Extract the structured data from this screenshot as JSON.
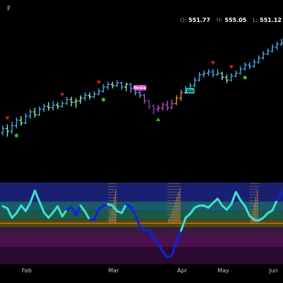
{
  "header": {
    "ticker_fragment": "F",
    "ohlc": [
      {
        "key": "O:",
        "value": "551.77"
      },
      {
        "key": "H:",
        "value": "555.05"
      },
      {
        "key": "L:",
        "value": "551.12"
      }
    ]
  },
  "colors": {
    "up_light_blue": "#4aa8e8",
    "up_mint": "#8fe8b8",
    "up_orange": "#e8913a",
    "down_magenta": "#c04ad0",
    "down_purple": "#7e3aa0",
    "marker_red": "#e02020",
    "marker_green": "#18c840",
    "wave_cyan": "#40e0d0",
    "wave_blue": "#1020e0",
    "squeeze_orange": "#e08840"
  },
  "chart_data": [
    {
      "type": "candlestick-bars",
      "x": [
        "Feb",
        "Mar",
        "Apr",
        "May",
        "Jun"
      ],
      "title": "",
      "ylabel": "",
      "series_price": [
        {
          "idx": 0,
          "o": 487,
          "c": 490,
          "h": 492,
          "l": 485,
          "col": "up_light_blue"
        },
        {
          "idx": 1,
          "o": 490,
          "c": 488,
          "h": 493,
          "l": 484,
          "col": "up_mint"
        },
        {
          "idx": 2,
          "o": 488,
          "c": 492,
          "h": 495,
          "l": 486,
          "col": "up_light_blue"
        },
        {
          "idx": 3,
          "o": 492,
          "c": 496,
          "h": 498,
          "l": 490,
          "col": "up_light_blue"
        },
        {
          "idx": 4,
          "o": 496,
          "c": 494,
          "h": 499,
          "l": 492,
          "col": "up_mint"
        },
        {
          "idx": 5,
          "o": 494,
          "c": 499,
          "h": 501,
          "l": 493,
          "col": "up_light_blue"
        },
        {
          "idx": 6,
          "o": 499,
          "c": 502,
          "h": 504,
          "l": 497,
          "col": "up_light_blue"
        },
        {
          "idx": 7,
          "o": 502,
          "c": 500,
          "h": 505,
          "l": 498,
          "col": "up_mint"
        },
        {
          "idx": 8,
          "o": 500,
          "c": 504,
          "h": 506,
          "l": 499,
          "col": "up_light_blue"
        },
        {
          "idx": 9,
          "o": 504,
          "c": 506,
          "h": 508,
          "l": 502,
          "col": "up_light_blue"
        },
        {
          "idx": 10,
          "o": 506,
          "c": 505,
          "h": 509,
          "l": 503,
          "col": "up_mint"
        },
        {
          "idx": 11,
          "o": 505,
          "c": 507,
          "h": 510,
          "l": 503,
          "col": "up_light_blue"
        },
        {
          "idx": 12,
          "o": 507,
          "c": 506,
          "h": 509,
          "l": 504,
          "col": "up_mint"
        },
        {
          "idx": 13,
          "o": 506,
          "c": 508,
          "h": 510,
          "l": 505,
          "col": "up_light_blue"
        },
        {
          "idx": 14,
          "o": 508,
          "c": 511,
          "h": 513,
          "l": 507,
          "col": "up_light_blue"
        },
        {
          "idx": 15,
          "o": 511,
          "c": 509,
          "h": 513,
          "l": 506,
          "col": "up_mint"
        },
        {
          "idx": 16,
          "o": 509,
          "c": 510,
          "h": 512,
          "l": 505,
          "col": "up_mint"
        },
        {
          "idx": 17,
          "o": 510,
          "c": 512,
          "h": 514,
          "l": 508,
          "col": "up_mint"
        },
        {
          "idx": 18,
          "o": 512,
          "c": 514,
          "h": 516,
          "l": 510,
          "col": "up_light_blue"
        },
        {
          "idx": 19,
          "o": 514,
          "c": 513,
          "h": 516,
          "l": 511,
          "col": "up_mint"
        },
        {
          "idx": 20,
          "o": 513,
          "c": 515,
          "h": 517,
          "l": 512,
          "col": "up_light_blue"
        },
        {
          "idx": 21,
          "o": 515,
          "c": 517,
          "h": 519,
          "l": 514,
          "col": "up_light_blue"
        },
        {
          "idx": 22,
          "o": 517,
          "c": 520,
          "h": 522,
          "l": 516,
          "col": "up_light_blue"
        },
        {
          "idx": 23,
          "o": 520,
          "c": 522,
          "h": 524,
          "l": 518,
          "col": "up_light_blue"
        },
        {
          "idx": 24,
          "o": 522,
          "c": 521,
          "h": 524,
          "l": 519,
          "col": "up_mint"
        },
        {
          "idx": 25,
          "o": 521,
          "c": 523,
          "h": 525,
          "l": 520,
          "col": "up_light_blue"
        },
        {
          "idx": 26,
          "o": 523,
          "c": 520,
          "h": 524,
          "l": 518,
          "col": "up_light_blue"
        },
        {
          "idx": 27,
          "o": 520,
          "c": 522,
          "h": 523,
          "l": 517,
          "col": "up_mint"
        },
        {
          "idx": 28,
          "o": 522,
          "c": 519,
          "h": 523,
          "l": 516,
          "col": "up_light_blue"
        },
        {
          "idx": 29,
          "o": 519,
          "c": 516,
          "h": 520,
          "l": 514,
          "col": "up_light_blue"
        },
        {
          "idx": 30,
          "o": 516,
          "c": 514,
          "h": 518,
          "l": 512,
          "col": "up_light_blue"
        },
        {
          "idx": 31,
          "o": 514,
          "c": 510,
          "h": 515,
          "l": 508,
          "col": "down_magenta"
        },
        {
          "idx": 32,
          "o": 510,
          "c": 506,
          "h": 511,
          "l": 504,
          "col": "down_purple"
        },
        {
          "idx": 33,
          "o": 506,
          "c": 504,
          "h": 508,
          "l": 500,
          "col": "down_purple"
        },
        {
          "idx": 34,
          "o": 504,
          "c": 505,
          "h": 507,
          "l": 502,
          "col": "down_magenta"
        },
        {
          "idx": 35,
          "o": 505,
          "c": 507,
          "h": 509,
          "l": 503,
          "col": "down_magenta"
        },
        {
          "idx": 36,
          "o": 507,
          "c": 505,
          "h": 510,
          "l": 503,
          "col": "down_magenta"
        },
        {
          "idx": 37,
          "o": 505,
          "c": 508,
          "h": 511,
          "l": 504,
          "col": "down_magenta"
        },
        {
          "idx": 38,
          "o": 508,
          "c": 512,
          "h": 514,
          "l": 507,
          "col": "up_orange"
        },
        {
          "idx": 39,
          "o": 512,
          "c": 516,
          "h": 518,
          "l": 510,
          "col": "up_orange"
        },
        {
          "idx": 40,
          "o": 516,
          "c": 519,
          "h": 521,
          "l": 515,
          "col": "up_light_blue"
        },
        {
          "idx": 41,
          "o": 519,
          "c": 521,
          "h": 523,
          "l": 518,
          "col": "up_light_blue"
        },
        {
          "idx": 42,
          "o": 521,
          "c": 525,
          "h": 527,
          "l": 520,
          "col": "up_light_blue"
        },
        {
          "idx": 43,
          "o": 525,
          "c": 529,
          "h": 531,
          "l": 524,
          "col": "up_light_blue"
        },
        {
          "idx": 44,
          "o": 529,
          "c": 530,
          "h": 532,
          "l": 527,
          "col": "up_light_blue"
        },
        {
          "idx": 45,
          "o": 530,
          "c": 531,
          "h": 533,
          "l": 528,
          "col": "up_light_blue"
        },
        {
          "idx": 46,
          "o": 531,
          "c": 529,
          "h": 533,
          "l": 527,
          "col": "up_light_blue"
        },
        {
          "idx": 47,
          "o": 529,
          "c": 530,
          "h": 533,
          "l": 528,
          "col": "up_light_blue"
        },
        {
          "idx": 48,
          "o": 530,
          "c": 527,
          "h": 531,
          "l": 525,
          "col": "up_mint"
        },
        {
          "idx": 49,
          "o": 527,
          "c": 525,
          "h": 529,
          "l": 523,
          "col": "up_mint"
        },
        {
          "idx": 50,
          "o": 525,
          "c": 528,
          "h": 530,
          "l": 524,
          "col": "up_light_blue"
        },
        {
          "idx": 51,
          "o": 528,
          "c": 530,
          "h": 532,
          "l": 527,
          "col": "up_light_blue"
        },
        {
          "idx": 52,
          "o": 530,
          "c": 533,
          "h": 535,
          "l": 529,
          "col": "up_light_blue"
        },
        {
          "idx": 53,
          "o": 533,
          "c": 536,
          "h": 538,
          "l": 532,
          "col": "up_light_blue"
        },
        {
          "idx": 54,
          "o": 536,
          "c": 535,
          "h": 538,
          "l": 533,
          "col": "up_light_blue"
        },
        {
          "idx": 55,
          "o": 535,
          "c": 538,
          "h": 540,
          "l": 534,
          "col": "up_light_blue"
        },
        {
          "idx": 56,
          "o": 538,
          "c": 541,
          "h": 543,
          "l": 537,
          "col": "up_light_blue"
        },
        {
          "idx": 57,
          "o": 541,
          "c": 544,
          "h": 546,
          "l": 540,
          "col": "up_light_blue"
        },
        {
          "idx": 58,
          "o": 544,
          "c": 546,
          "h": 548,
          "l": 543,
          "col": "up_light_blue"
        },
        {
          "idx": 59,
          "o": 546,
          "c": 549,
          "h": 551,
          "l": 545,
          "col": "up_light_blue"
        },
        {
          "idx": 60,
          "o": 549,
          "c": 551,
          "h": 553,
          "l": 547,
          "col": "up_light_blue"
        },
        {
          "idx": 61,
          "o": 551,
          "c": 552,
          "h": 555,
          "l": 550,
          "col": "up_light_blue"
        }
      ],
      "markers": [
        {
          "idx": 1,
          "type": "sell",
          "label": ""
        },
        {
          "idx": 3,
          "type": "buy",
          "label": ""
        },
        {
          "idx": 13,
          "type": "sell",
          "label": ""
        },
        {
          "idx": 21,
          "type": "sell",
          "label": ""
        },
        {
          "idx": 22,
          "type": "buy",
          "label": ""
        },
        {
          "idx": 30,
          "type": "label_nogo",
          "label": "NoGo"
        },
        {
          "idx": 34,
          "type": "buy",
          "label": ""
        },
        {
          "idx": 41,
          "type": "label_go",
          "label": "Go"
        },
        {
          "idx": 46,
          "type": "sell",
          "label": ""
        },
        {
          "idx": 50,
          "type": "sell",
          "label": ""
        },
        {
          "idx": 53,
          "type": "buy",
          "label": ""
        }
      ]
    },
    {
      "type": "oscillator",
      "ylim": [
        -6,
        6
      ],
      "zero_line": 0,
      "zones": [
        {
          "from": 3.2,
          "to": 6,
          "color": "#1a2070"
        },
        {
          "from": 1.8,
          "to": 3.2,
          "color": "#1a5a6a"
        },
        {
          "from": 0.6,
          "to": 1.8,
          "color": "#1a5a4a"
        },
        {
          "from": -0.6,
          "to": 0.6,
          "color": "#4a4a10"
        },
        {
          "from": -1.8,
          "to": -0.6,
          "color": "#3a1a40"
        },
        {
          "from": -3.5,
          "to": -1.8,
          "color": "#4a1050"
        },
        {
          "from": -6,
          "to": -3.5,
          "color": "#2a0a30"
        }
      ],
      "values": [
        2.5,
        2.2,
        0.8,
        1.5,
        2.6,
        1.8,
        3.0,
        4.8,
        3.2,
        1.6,
        0.8,
        1.6,
        2.5,
        1.0,
        2.0,
        2.4,
        1.2,
        2.6,
        1.7,
        0.5,
        0.5,
        2.0,
        2.6,
        2.8,
        2.6,
        1.8,
        1.5,
        2.8,
        2.4,
        1.2,
        -0.5,
        -1.1,
        -1.0,
        -2.2,
        -3.0,
        -4.2,
        -5.0,
        -4.8,
        -2.6,
        -1.1,
        0.8,
        1.4,
        2.3,
        2.6,
        2.6,
        2.3,
        3.0,
        3.6,
        2.6,
        2.0,
        2.8,
        4.6,
        3.4,
        2.5,
        1.1,
        0.5,
        0.4,
        0.8,
        1.5,
        1.9,
        3.4,
        4.6
      ],
      "wave_colors": [
        "cyan",
        "cyan",
        "cyan",
        "cyan",
        "cyan",
        "cyan",
        "cyan",
        "cyan",
        "cyan",
        "cyan",
        "cyan",
        "cyan",
        "cyan",
        "cyan",
        "blue",
        "blue",
        "blue",
        "cyan",
        "cyan",
        "blue",
        "blue",
        "blue",
        "blue",
        "cyan",
        "cyan",
        "cyan",
        "cyan",
        "blue",
        "blue",
        "blue",
        "blue",
        "blue",
        "blue",
        "blue",
        "blue",
        "blue",
        "blue",
        "blue",
        "blue",
        "cyan",
        "cyan",
        "cyan",
        "cyan",
        "cyan",
        "cyan",
        "cyan",
        "cyan",
        "cyan",
        "cyan",
        "cyan",
        "cyan",
        "cyan",
        "cyan",
        "cyan",
        "cyan",
        "cyan",
        "cyan",
        "cyan",
        "cyan",
        "cyan",
        "blue",
        "blue"
      ],
      "squeeze_ranges": [
        [
          23,
          25
        ],
        [
          36,
          39
        ],
        [
          54,
          56
        ]
      ]
    }
  ]
}
